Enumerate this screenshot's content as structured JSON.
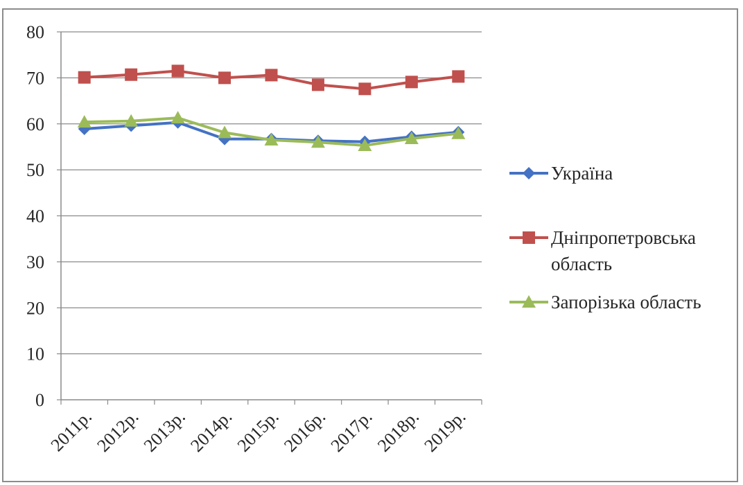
{
  "chart_data": {
    "type": "line",
    "title": "",
    "xlabel": "",
    "ylabel": "",
    "categories": [
      "2011р.",
      "2012р.",
      "2013р.",
      "2014р.",
      "2015р.",
      "2016р.",
      "2017р.",
      "2018р.",
      "2019р."
    ],
    "ylim": [
      0,
      80
    ],
    "yticks": [
      0,
      10,
      20,
      30,
      40,
      50,
      60,
      70,
      80
    ],
    "grid": "horizontal",
    "legend_position": "right",
    "series": [
      {
        "name": "Україна",
        "values": [
          58.9,
          59.6,
          60.3,
          56.7,
          56.7,
          56.3,
          56.1,
          57.2,
          58.2
        ],
        "color": "#4472c4",
        "marker": "diamond"
      },
      {
        "name": "Дніпропетровська область",
        "legend_lines": [
          "Дніпропетровська",
          "область"
        ],
        "values": [
          70.1,
          70.7,
          71.5,
          70.0,
          70.6,
          68.5,
          67.6,
          69.1,
          70.3
        ],
        "color": "#c0504d",
        "marker": "square"
      },
      {
        "name": "Запорізька область",
        "values": [
          60.4,
          60.6,
          61.3,
          58.1,
          56.5,
          56.0,
          55.3,
          56.8,
          57.9
        ],
        "color": "#9bbb59",
        "marker": "triangle"
      }
    ]
  }
}
